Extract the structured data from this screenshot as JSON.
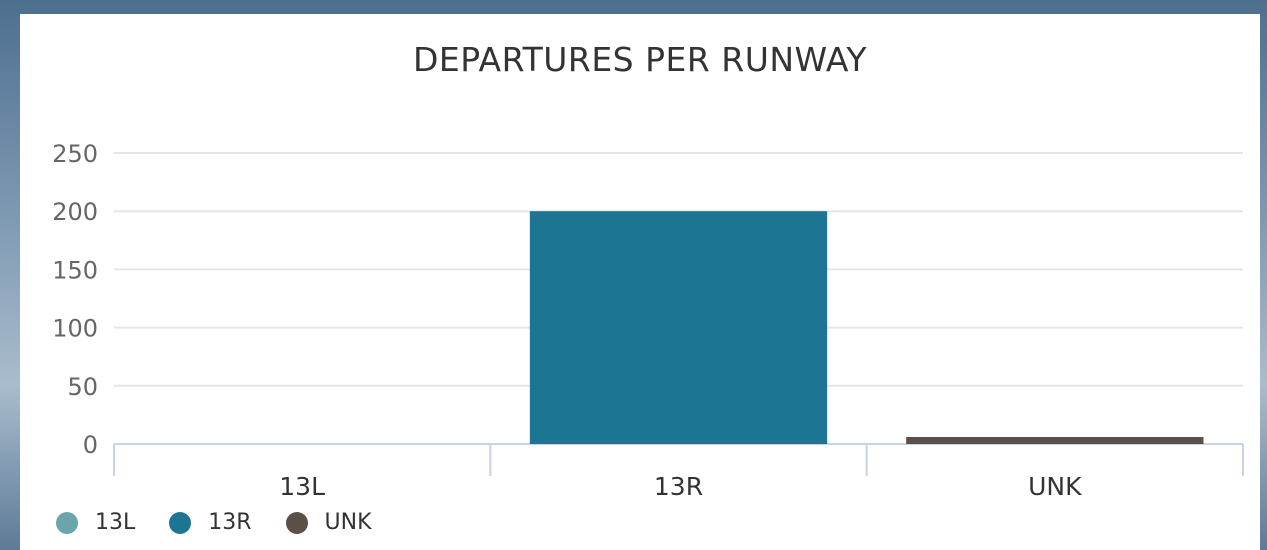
{
  "chart_data": {
    "type": "bar",
    "title": "DEPARTURES PER RUNWAY",
    "categories": [
      "13L",
      "13R",
      "UNK"
    ],
    "values": [
      0,
      200,
      6
    ],
    "colors": [
      "#6aa6a9",
      "#1b7593",
      "#5a5047"
    ],
    "ylim": [
      0,
      250
    ],
    "yticks": [
      "0",
      "50",
      "100",
      "150",
      "200",
      "250"
    ],
    "xlabel": "",
    "ylabel": "",
    "grid": true,
    "legend": {
      "placement": "bottom-left",
      "items": [
        "13L",
        "13R",
        "UNK"
      ]
    }
  }
}
